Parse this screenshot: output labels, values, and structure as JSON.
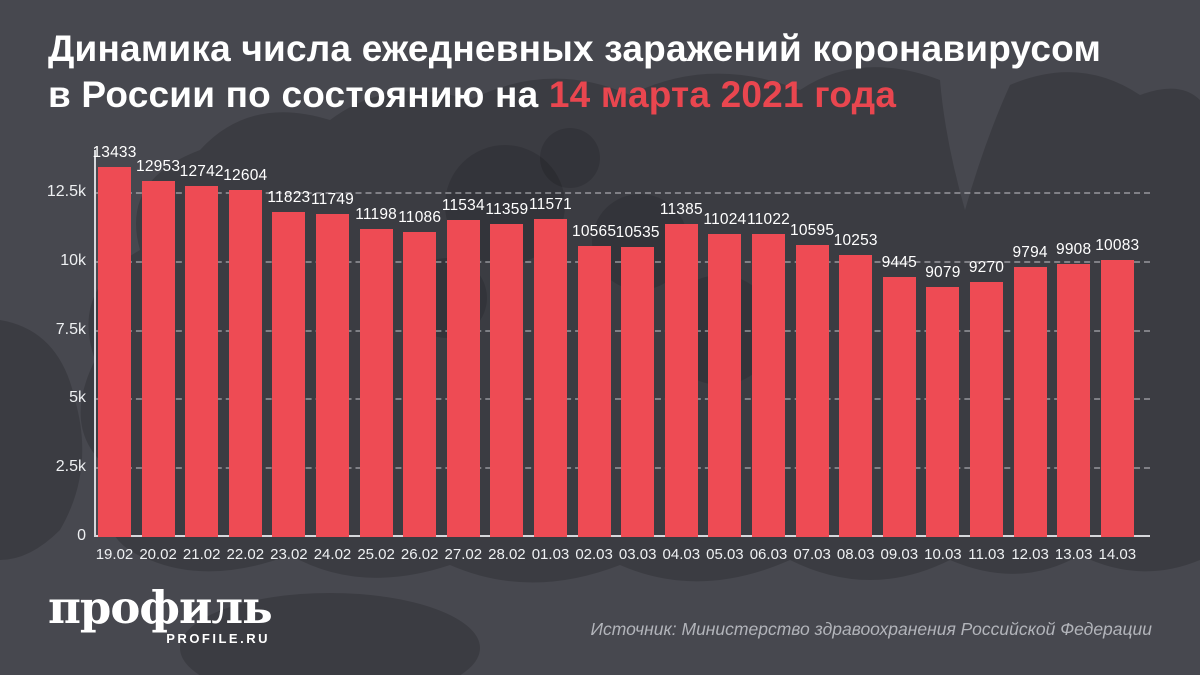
{
  "title": {
    "line1": "Динамика числа ежедневных заражений коронавирусом",
    "line2_prefix": "в России по состоянию на ",
    "line2_highlight": "14 марта 2021 года"
  },
  "chart_data": {
    "type": "bar",
    "title": "Динамика числа ежедневных заражений коронавирусом в России по состоянию на 14 марта 2021 года",
    "xlabel": "",
    "ylabel": "",
    "categories": [
      "19.02",
      "20.02",
      "21.02",
      "22.02",
      "23.02",
      "24.02",
      "25.02",
      "26.02",
      "27.02",
      "28.02",
      "01.03",
      "02.03",
      "03.03",
      "04.03",
      "05.03",
      "06.03",
      "07.03",
      "08.03",
      "09.03",
      "10.03",
      "11.03",
      "12.03",
      "13.03",
      "14.03"
    ],
    "values": [
      13433,
      12953,
      12742,
      12604,
      11823,
      11749,
      11198,
      11086,
      11534,
      11359,
      11571,
      10565,
      10535,
      11385,
      11024,
      11022,
      10595,
      10253,
      9445,
      9079,
      9270,
      9794,
      9908,
      10083
    ],
    "value_labels_shown": true,
    "y_ticks": [
      {
        "label": "0",
        "value": 0
      },
      {
        "label": "2.5k",
        "value": 2500
      },
      {
        "label": "5k",
        "value": 5000
      },
      {
        "label": "7.5k",
        "value": 7500
      },
      {
        "label": "10k",
        "value": 10000
      },
      {
        "label": "12.5k",
        "value": 12500
      }
    ],
    "ylim": [
      0,
      14060
    ],
    "grid": "horizontal-dashed",
    "legend": "none",
    "bar_color": "#ee4b54"
  },
  "footer": {
    "logo_main": "профиль",
    "logo_sub": "PROFILE.RU",
    "source": "Источник: Министерство здравоохранения Российской Федерации"
  },
  "colors": {
    "background": "#47484f",
    "map_silhouette_tint": "rgba(0,0,0,0.16)",
    "bar": "#ee4b54",
    "accent_red": "#e9464f",
    "text_white": "#ffffff",
    "axis_line": "#d6d7db",
    "muted_text": "#b2b4ba"
  }
}
